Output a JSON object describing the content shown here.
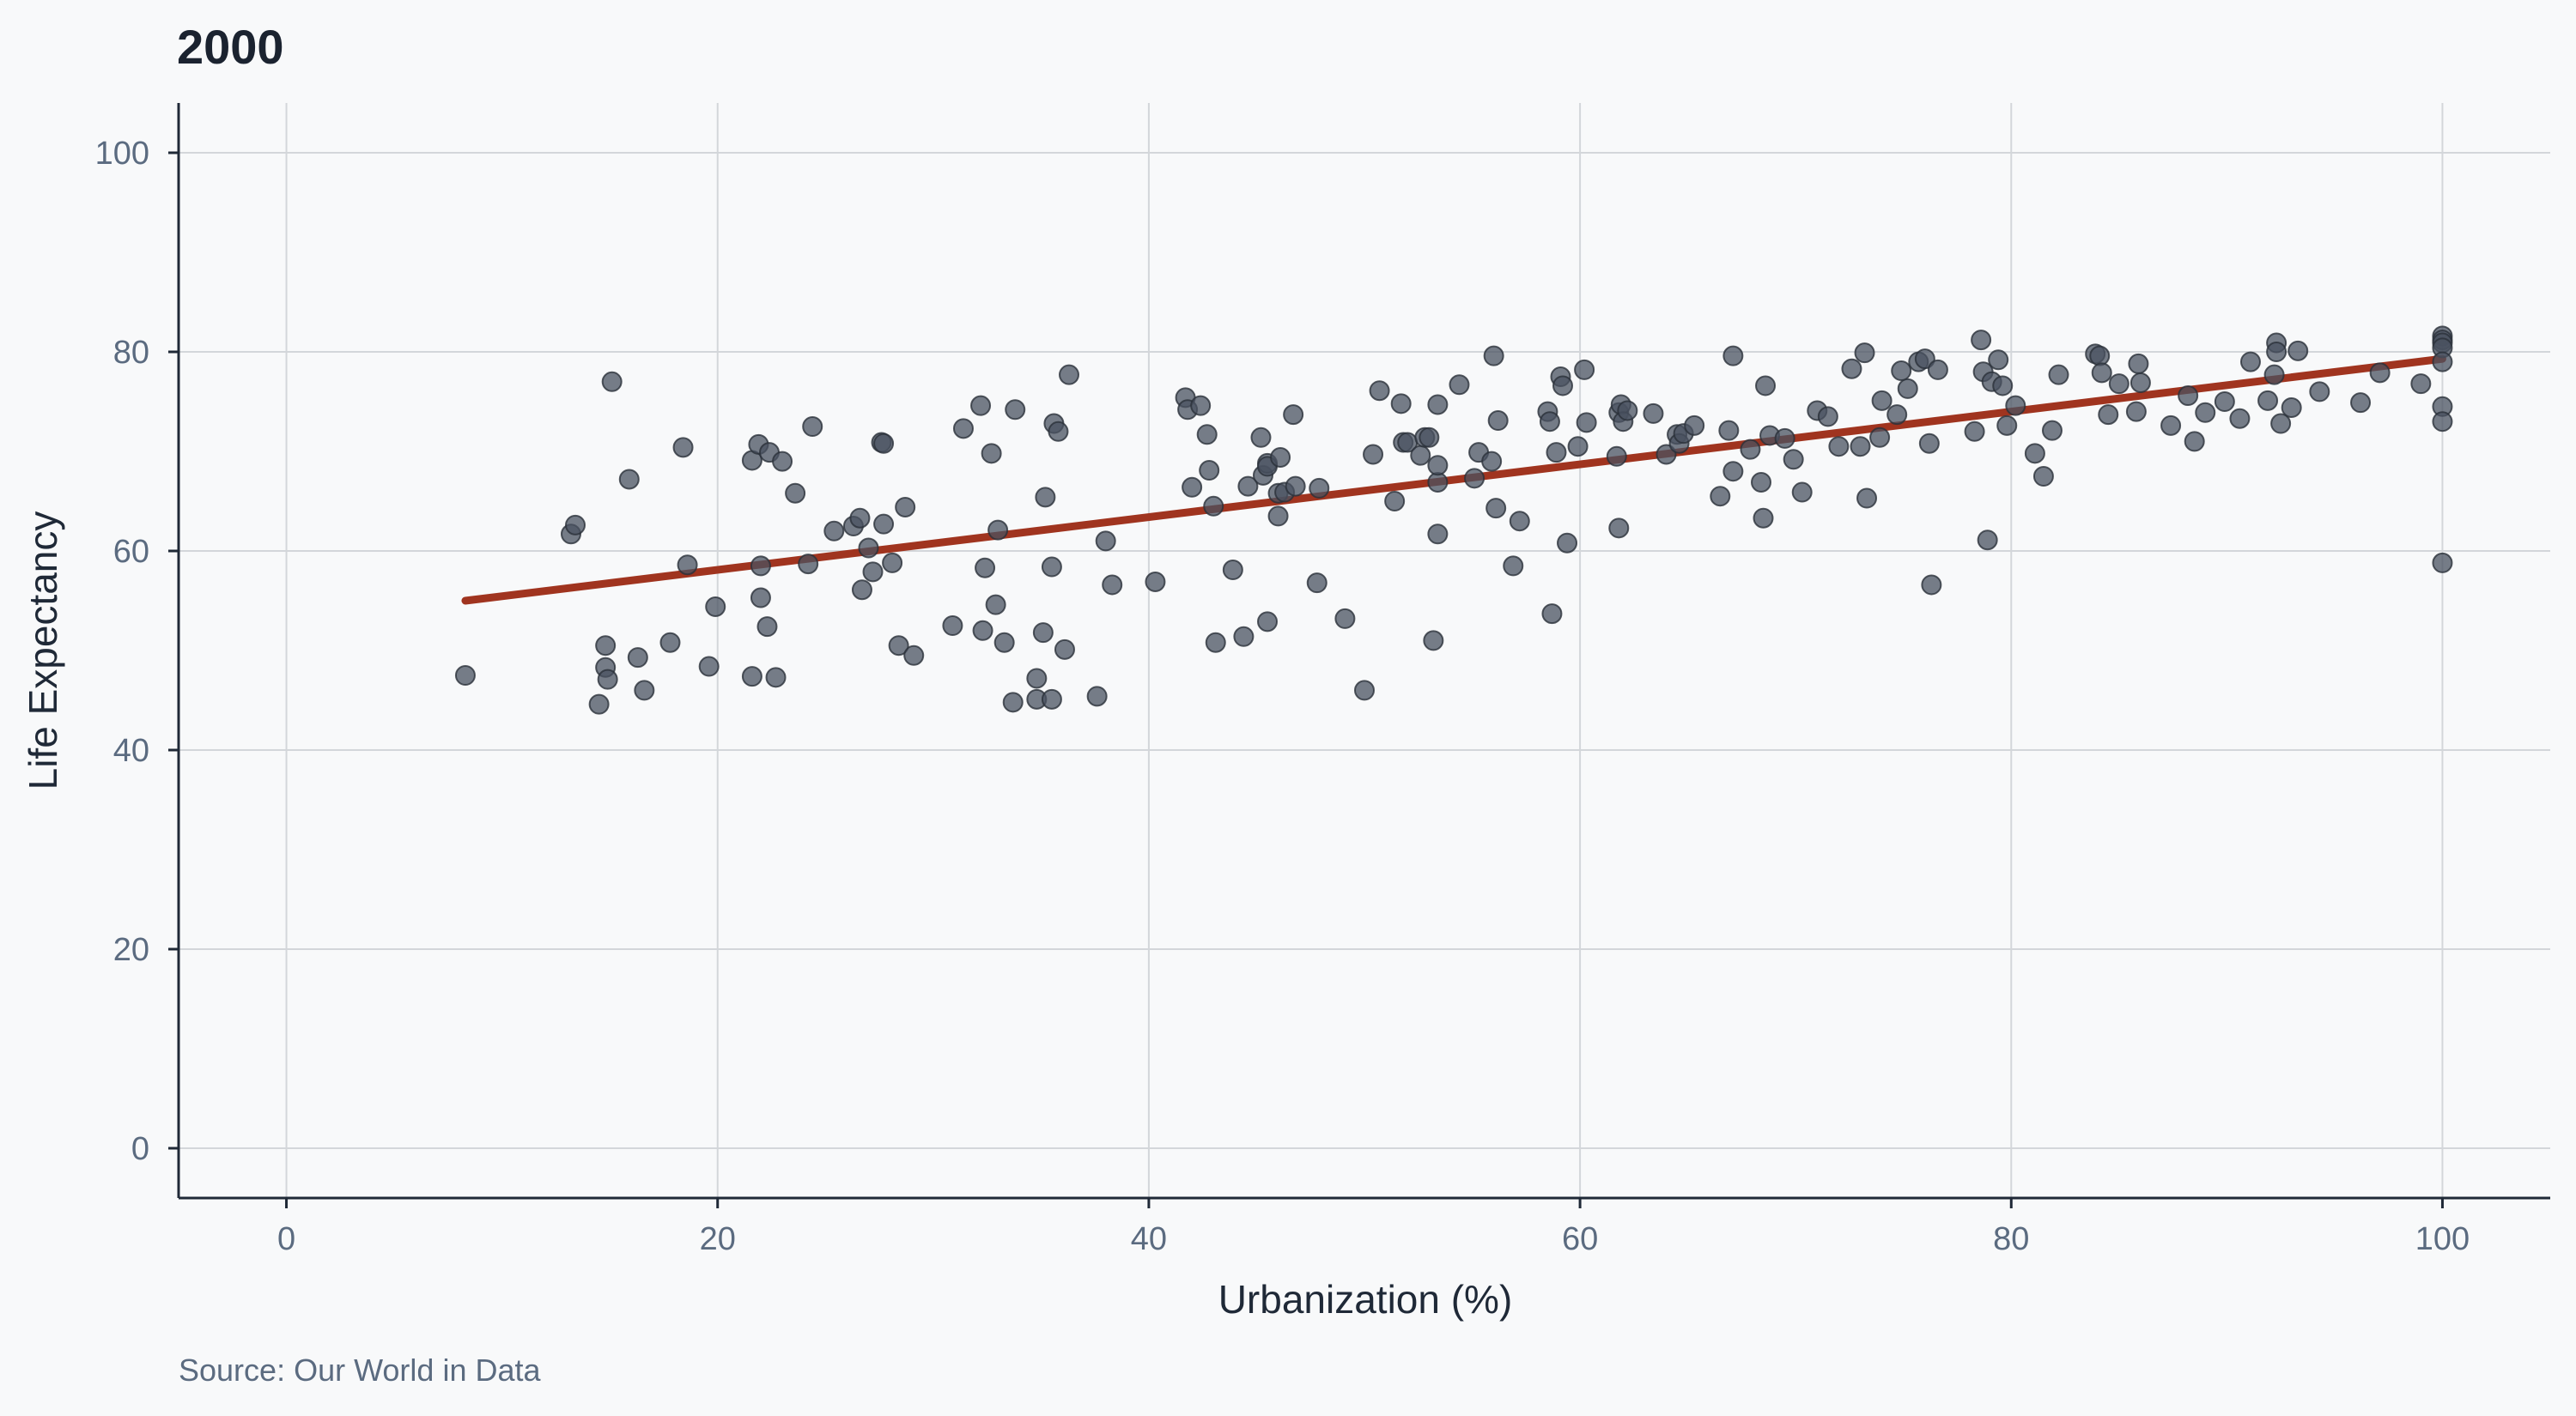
{
  "chart_data": {
    "type": "scatter",
    "title": "2000",
    "xlabel": "Urbanization (%)",
    "ylabel": "Life Expectancy",
    "source": "Source: Our World in Data",
    "xlim": [
      -5,
      105
    ],
    "ylim": [
      -5,
      105
    ],
    "xticks": [
      0,
      20,
      40,
      60,
      80,
      100
    ],
    "yticks": [
      0,
      20,
      40,
      60,
      80,
      100
    ],
    "grid": true,
    "colors": {
      "points": "#4a5260",
      "trend": "#a0341f",
      "background": "#f8f9fa"
    },
    "trendline": {
      "x": [
        8.3,
        100
      ],
      "y": [
        55.0,
        79.3
      ]
    },
    "points": [
      [
        8.3,
        47.5
      ],
      [
        13.2,
        61.7
      ],
      [
        13.4,
        62.6
      ],
      [
        14.5,
        44.6
      ],
      [
        14.8,
        50.5
      ],
      [
        14.8,
        48.3
      ],
      [
        14.9,
        47.1
      ],
      [
        15.1,
        77.0
      ],
      [
        15.9,
        67.2
      ],
      [
        16.3,
        49.3
      ],
      [
        16.6,
        46.0
      ],
      [
        17.8,
        50.8
      ],
      [
        18.4,
        70.4
      ],
      [
        18.6,
        58.6
      ],
      [
        19.6,
        48.4
      ],
      [
        19.9,
        54.4
      ],
      [
        21.6,
        69.1
      ],
      [
        21.6,
        47.4
      ],
      [
        21.9,
        70.7
      ],
      [
        22.0,
        58.5
      ],
      [
        22.0,
        55.3
      ],
      [
        22.3,
        52.4
      ],
      [
        22.4,
        69.9
      ],
      [
        22.7,
        47.3
      ],
      [
        23.0,
        69.0
      ],
      [
        23.6,
        65.8
      ],
      [
        24.2,
        58.7
      ],
      [
        24.4,
        72.5
      ],
      [
        25.4,
        62.0
      ],
      [
        26.3,
        62.5
      ],
      [
        26.6,
        63.3
      ],
      [
        26.7,
        56.1
      ],
      [
        27.0,
        60.3
      ],
      [
        27.2,
        57.9
      ],
      [
        27.6,
        70.9
      ],
      [
        27.7,
        70.8
      ],
      [
        27.7,
        62.7
      ],
      [
        28.1,
        58.8
      ],
      [
        28.4,
        50.5
      ],
      [
        28.7,
        64.4
      ],
      [
        29.1,
        49.5
      ],
      [
        30.9,
        52.5
      ],
      [
        31.4,
        72.3
      ],
      [
        32.2,
        74.6
      ],
      [
        32.3,
        52.0
      ],
      [
        32.4,
        58.3
      ],
      [
        32.7,
        69.8
      ],
      [
        32.9,
        54.6
      ],
      [
        33.0,
        62.1
      ],
      [
        33.3,
        50.8
      ],
      [
        33.7,
        44.8
      ],
      [
        33.8,
        74.2
      ],
      [
        34.8,
        45.1
      ],
      [
        34.8,
        47.2
      ],
      [
        35.1,
        51.8
      ],
      [
        35.2,
        65.4
      ],
      [
        35.5,
        58.4
      ],
      [
        35.5,
        45.1
      ],
      [
        35.6,
        72.8
      ],
      [
        35.8,
        72.0
      ],
      [
        36.1,
        50.1
      ],
      [
        36.3,
        77.7
      ],
      [
        37.6,
        45.4
      ],
      [
        38.0,
        61.0
      ],
      [
        38.3,
        56.6
      ],
      [
        40.3,
        56.9
      ],
      [
        41.7,
        75.4
      ],
      [
        41.8,
        74.2
      ],
      [
        42.0,
        66.4
      ],
      [
        42.4,
        74.6
      ],
      [
        42.7,
        71.7
      ],
      [
        42.8,
        68.1
      ],
      [
        43.0,
        64.5
      ],
      [
        43.1,
        50.8
      ],
      [
        43.9,
        58.1
      ],
      [
        44.4,
        51.4
      ],
      [
        44.6,
        66.5
      ],
      [
        45.2,
        71.4
      ],
      [
        45.3,
        67.6
      ],
      [
        45.5,
        68.8
      ],
      [
        45.5,
        68.5
      ],
      [
        45.5,
        52.9
      ],
      [
        46.0,
        65.8
      ],
      [
        46.0,
        63.5
      ],
      [
        46.1,
        69.4
      ],
      [
        46.3,
        65.9
      ],
      [
        46.7,
        73.7
      ],
      [
        46.8,
        66.5
      ],
      [
        47.8,
        56.8
      ],
      [
        47.9,
        66.3
      ],
      [
        49.1,
        53.2
      ],
      [
        50.0,
        46.0
      ],
      [
        50.4,
        69.7
      ],
      [
        50.7,
        76.1
      ],
      [
        51.4,
        65.0
      ],
      [
        51.7,
        74.8
      ],
      [
        51.8,
        70.9
      ],
      [
        52.0,
        70.9
      ],
      [
        52.6,
        69.6
      ],
      [
        52.8,
        71.4
      ],
      [
        53.0,
        71.4
      ],
      [
        53.2,
        51.0
      ],
      [
        53.4,
        74.7
      ],
      [
        53.4,
        61.7
      ],
      [
        53.4,
        66.9
      ],
      [
        53.4,
        68.6
      ],
      [
        54.4,
        76.7
      ],
      [
        55.1,
        67.3
      ],
      [
        55.3,
        69.9
      ],
      [
        55.9,
        69.0
      ],
      [
        56.0,
        79.6
      ],
      [
        56.1,
        64.3
      ],
      [
        56.2,
        73.1
      ],
      [
        56.9,
        58.5
      ],
      [
        57.2,
        63.0
      ],
      [
        58.5,
        74.0
      ],
      [
        58.6,
        73.0
      ],
      [
        58.7,
        53.7
      ],
      [
        58.9,
        69.9
      ],
      [
        59.1,
        77.5
      ],
      [
        59.2,
        76.6
      ],
      [
        59.4,
        60.8
      ],
      [
        59.9,
        70.5
      ],
      [
        60.2,
        78.2
      ],
      [
        60.3,
        72.9
      ],
      [
        61.7,
        69.5
      ],
      [
        61.8,
        62.3
      ],
      [
        61.8,
        73.9
      ],
      [
        61.9,
        74.7
      ],
      [
        62.0,
        73.0
      ],
      [
        62.2,
        74.1
      ],
      [
        63.4,
        73.8
      ],
      [
        64.0,
        69.7
      ],
      [
        64.5,
        71.7
      ],
      [
        64.6,
        70.8
      ],
      [
        64.8,
        71.8
      ],
      [
        65.3,
        72.6
      ],
      [
        66.5,
        65.5
      ],
      [
        66.9,
        72.1
      ],
      [
        67.1,
        79.6
      ],
      [
        67.1,
        68.0
      ],
      [
        67.9,
        70.2
      ],
      [
        68.4,
        66.9
      ],
      [
        68.5,
        63.3
      ],
      [
        68.6,
        76.6
      ],
      [
        68.8,
        71.6
      ],
      [
        69.5,
        71.3
      ],
      [
        69.9,
        69.2
      ],
      [
        70.3,
        65.9
      ],
      [
        71.0,
        74.1
      ],
      [
        71.5,
        73.5
      ],
      [
        72.0,
        70.5
      ],
      [
        72.6,
        78.3
      ],
      [
        73.0,
        70.5
      ],
      [
        73.2,
        79.9
      ],
      [
        73.3,
        65.3
      ],
      [
        73.9,
        71.4
      ],
      [
        74.0,
        75.1
      ],
      [
        74.7,
        73.7
      ],
      [
        74.9,
        78.1
      ],
      [
        75.2,
        76.3
      ],
      [
        75.7,
        79.0
      ],
      [
        76.0,
        79.3
      ],
      [
        76.2,
        70.8
      ],
      [
        76.3,
        56.6
      ],
      [
        76.6,
        78.2
      ],
      [
        78.3,
        72.0
      ],
      [
        78.6,
        81.2
      ],
      [
        78.7,
        78.0
      ],
      [
        78.9,
        61.1
      ],
      [
        79.1,
        77.0
      ],
      [
        79.4,
        79.2
      ],
      [
        79.6,
        76.6
      ],
      [
        79.8,
        72.6
      ],
      [
        80.2,
        74.6
      ],
      [
        81.1,
        69.8
      ],
      [
        81.5,
        67.5
      ],
      [
        81.9,
        72.1
      ],
      [
        82.2,
        77.7
      ],
      [
        83.9,
        79.8
      ],
      [
        84.1,
        79.6
      ],
      [
        84.2,
        77.9
      ],
      [
        84.5,
        73.7
      ],
      [
        85.0,
        76.8
      ],
      [
        85.8,
        74.0
      ],
      [
        85.9,
        78.8
      ],
      [
        86.0,
        76.9
      ],
      [
        87.4,
        72.6
      ],
      [
        88.2,
        75.6
      ],
      [
        88.5,
        71.0
      ],
      [
        89.0,
        73.9
      ],
      [
        89.9,
        75.0
      ],
      [
        90.6,
        73.3
      ],
      [
        91.1,
        79.0
      ],
      [
        91.9,
        75.1
      ],
      [
        92.2,
        77.7
      ],
      [
        92.3,
        80.9
      ],
      [
        92.3,
        80.0
      ],
      [
        92.5,
        72.8
      ],
      [
        93.0,
        74.4
      ],
      [
        93.3,
        80.1
      ],
      [
        94.3,
        76.0
      ],
      [
        96.2,
        74.9
      ],
      [
        97.1,
        77.9
      ],
      [
        99.0,
        76.8
      ],
      [
        100.0,
        81.6
      ],
      [
        100.0,
        81.2
      ],
      [
        100.0,
        80.9
      ],
      [
        100.0,
        80.4
      ],
      [
        100.0,
        79.0
      ],
      [
        100.0,
        74.5
      ],
      [
        100.0,
        73.0
      ],
      [
        100.0,
        58.8
      ]
    ]
  }
}
